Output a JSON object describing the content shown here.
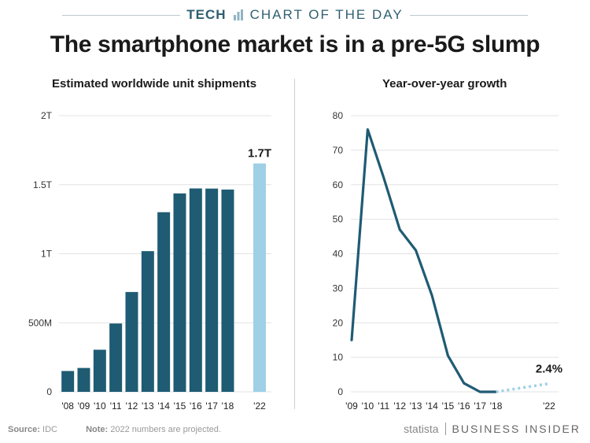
{
  "header": {
    "tech": "TECH",
    "title": "CHART OF THE DAY"
  },
  "title": "The smartphone market is in a pre-5G slump",
  "footer": {
    "source_label": "Source:",
    "source": "IDC",
    "note_label": "Note:",
    "note": "2022 numbers are projected.",
    "brand_left": "statista",
    "brand_right": "BUSINESS INSIDER"
  },
  "colors": {
    "bar": "#1f5b73",
    "projected": "#9fd0e6",
    "line": "#1f5b73",
    "grid": "#e3e3e3"
  },
  "icons": {
    "header": "bar-chart-icon",
    "statista": "statista-logo-icon"
  },
  "chart_data": [
    {
      "type": "bar",
      "title": "Estimated worldwide unit shipments",
      "categories": [
        "'08",
        "'09",
        "'10",
        "'11",
        "'12",
        "'13",
        "'14",
        "'15",
        "'16",
        "'17",
        "'18",
        "'22"
      ],
      "values": [
        0.151,
        0.173,
        0.305,
        0.495,
        0.723,
        1.019,
        1.301,
        1.437,
        1.473,
        1.472,
        1.465,
        1.654
      ],
      "projected": [
        false,
        false,
        false,
        false,
        false,
        false,
        false,
        false,
        false,
        false,
        false,
        true
      ],
      "ylim": [
        0,
        2
      ],
      "yticks": [
        0,
        0.5,
        1,
        1.5,
        2
      ],
      "ytick_labels": [
        "0",
        "500M",
        "1T",
        "1.5T",
        "2T"
      ],
      "annotations": [
        {
          "category": "'22",
          "text": "1.7T"
        }
      ],
      "grid": true
    },
    {
      "type": "line",
      "title": "Year-over-year growth",
      "x": [
        "'09",
        "'10",
        "'11",
        "'12",
        "'13",
        "'14",
        "'15",
        "'16",
        "'17",
        "'18"
      ],
      "values": [
        15,
        76,
        62,
        47,
        41,
        28,
        10.5,
        2.5,
        0,
        0
      ],
      "projected": {
        "x": [
          "'18",
          "'22"
        ],
        "values": [
          0,
          2.4
        ]
      },
      "xtick_labels": [
        "'09",
        "'10",
        "'11",
        "'12",
        "'13",
        "'14",
        "'15",
        "'16",
        "'17",
        "'18",
        "'22"
      ],
      "ylim": [
        0,
        80
      ],
      "yticks": [
        0,
        10,
        20,
        30,
        40,
        50,
        60,
        70,
        80
      ],
      "annotations": [
        {
          "x": "'22",
          "text": "2.4%"
        }
      ],
      "grid": true
    }
  ]
}
